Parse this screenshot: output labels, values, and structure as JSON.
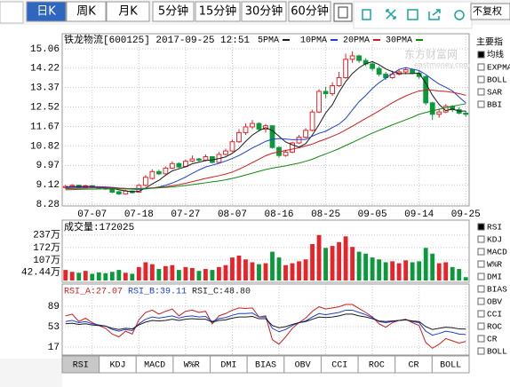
{
  "toolbar": {
    "tabs": [
      "日K",
      "周K",
      "月K",
      "5分钟",
      "15分钟",
      "30分钟",
      "60分钟"
    ],
    "active_tab": 0,
    "adjust": "不复权"
  },
  "side_panel": {
    "title": "主要指",
    "main_indicators": [
      "均线",
      "EXPMA",
      "BOLL",
      "SAR",
      "BBI"
    ],
    "main_checked": 0,
    "sub_indicators": [
      "RSI",
      "KDJ",
      "MACD",
      "W%R",
      "DMI",
      "BIAS",
      "OBV",
      "CCI",
      "ROC",
      "CR",
      "BOLL"
    ],
    "sub_checked": 0
  },
  "bottom_tabs": {
    "tabs": [
      "RSI",
      "KDJ",
      "MACD",
      "W%R",
      "DMI",
      "BIAS",
      "OBV",
      "CCI",
      "ROC",
      "CR",
      "BOLL"
    ],
    "active_tab": 0
  },
  "chart_data": [
    {
      "type": "candlestick",
      "title": "铁龙物流[600125] 2017-09-25 12:51",
      "watermark": "东方财富网",
      "watermark_sub": "eastmoney.com",
      "categories": [
        null,
        null,
        null,
        null,
        "07-07",
        null,
        null,
        null,
        null,
        null,
        null,
        "07-18",
        null,
        null,
        null,
        null,
        null,
        null,
        "07-27",
        null,
        null,
        null,
        null,
        null,
        null,
        "08-07",
        null,
        null,
        null,
        null,
        null,
        null,
        "08-16",
        null,
        null,
        null,
        null,
        null,
        null,
        "08-25",
        null,
        null,
        null,
        null,
        null,
        null,
        "09-05",
        null,
        null,
        null,
        null,
        null,
        null,
        "09-14",
        null,
        null,
        null,
        null,
        null,
        null,
        "09-25"
      ],
      "open": [
        9.0,
        9.05,
        9.1,
        9.0,
        9.08,
        9.02,
        8.98,
        8.95,
        8.82,
        8.72,
        8.85,
        8.8,
        9.1,
        9.4,
        9.7,
        9.6,
        9.85,
        10.05,
        9.92,
        10.15,
        10.25,
        10.2,
        10.35,
        10.1,
        10.45,
        10.6,
        11.0,
        11.4,
        11.65,
        11.8,
        11.55,
        11.7,
        10.75,
        10.4,
        10.55,
        10.95,
        11.2,
        11.5,
        12.3,
        13.2,
        13.1,
        13.45,
        13.8,
        14.6,
        14.75,
        14.55,
        14.4,
        14.2,
        13.95,
        13.8,
        13.95,
        14.05,
        14.15,
        14.0,
        13.85,
        12.7,
        12.2,
        12.3,
        12.55,
        12.4,
        12.25
      ],
      "high": [
        9.12,
        9.15,
        9.12,
        9.12,
        9.1,
        9.05,
        9.02,
        8.98,
        8.86,
        8.9,
        8.88,
        9.15,
        9.55,
        9.8,
        9.78,
        9.92,
        10.15,
        10.1,
        10.22,
        10.4,
        10.3,
        10.45,
        10.38,
        10.55,
        10.7,
        11.1,
        11.55,
        11.8,
        11.95,
        11.85,
        11.78,
        11.72,
        10.8,
        10.65,
        11.0,
        11.3,
        11.6,
        12.4,
        13.3,
        13.4,
        13.6,
        14.05,
        14.85,
        14.95,
        14.8,
        14.65,
        14.5,
        14.3,
        14.05,
        14.1,
        14.15,
        14.25,
        14.2,
        14.1,
        13.9,
        12.75,
        12.45,
        12.65,
        12.6,
        12.5,
        12.35
      ],
      "low": [
        8.95,
        9.0,
        8.96,
        8.98,
        8.98,
        8.92,
        8.9,
        8.76,
        8.68,
        8.7,
        8.74,
        8.78,
        9.05,
        9.35,
        9.55,
        9.58,
        9.8,
        9.85,
        9.88,
        10.1,
        10.12,
        10.15,
        10.05,
        10.08,
        10.4,
        10.55,
        10.95,
        11.3,
        11.55,
        11.45,
        11.4,
        10.7,
        10.3,
        10.35,
        10.5,
        10.9,
        11.15,
        11.45,
        12.25,
        12.9,
        13.0,
        13.4,
        13.75,
        14.45,
        14.45,
        14.3,
        14.1,
        13.85,
        13.7,
        13.75,
        13.9,
        13.95,
        13.95,
        13.75,
        12.6,
        11.95,
        12.05,
        12.25,
        12.3,
        12.2,
        12.1
      ],
      "close": [
        9.05,
        9.1,
        9.0,
        9.08,
        9.02,
        8.98,
        8.95,
        8.8,
        8.72,
        8.85,
        8.78,
        9.1,
        9.45,
        9.7,
        9.6,
        9.85,
        10.05,
        9.9,
        10.15,
        10.25,
        10.2,
        10.35,
        10.1,
        10.45,
        10.6,
        11.0,
        11.4,
        11.65,
        11.8,
        11.55,
        11.7,
        10.75,
        10.4,
        10.55,
        10.95,
        11.2,
        11.5,
        12.3,
        13.2,
        13.1,
        13.45,
        13.8,
        14.6,
        14.75,
        14.55,
        14.4,
        14.2,
        13.95,
        13.8,
        13.95,
        14.05,
        14.15,
        14.0,
        13.85,
        12.7,
        12.2,
        12.3,
        12.55,
        12.4,
        12.25,
        12.2
      ],
      "up_color": "#e8232a",
      "down_color": "#0a9a3c",
      "series": [
        {
          "name": "5PMA",
          "color": "#1a1a1a",
          "values": [
            9.02,
            9.04,
            9.05,
            9.05,
            9.05,
            9.03,
            9.0,
            8.97,
            8.9,
            8.86,
            8.82,
            8.84,
            8.98,
            9.16,
            9.32,
            9.54,
            9.73,
            9.82,
            9.91,
            10.04,
            10.11,
            10.18,
            10.21,
            10.27,
            10.34,
            10.5,
            10.71,
            11.02,
            11.29,
            11.48,
            11.62,
            11.49,
            11.24,
            10.99,
            10.87,
            10.77,
            10.92,
            11.3,
            11.75,
            12.26,
            12.62,
            13.17,
            13.63,
            13.98,
            14.23,
            14.41,
            14.5,
            14.37,
            14.18,
            14.06,
            13.98,
            13.98,
            13.98,
            14.0,
            13.56,
            13.03,
            12.63,
            12.36,
            12.43,
            12.34,
            12.34
          ]
        },
        {
          "name": "10PMA",
          "color": "#1c3fd0",
          "values": [
            9.0,
            9.01,
            9.02,
            9.03,
            9.04,
            9.04,
            9.03,
            9.01,
            8.98,
            8.96,
            8.93,
            8.92,
            8.94,
            8.98,
            9.03,
            9.1,
            9.2,
            9.32,
            9.46,
            9.62,
            9.77,
            9.9,
            9.98,
            10.06,
            10.16,
            10.27,
            10.4,
            10.56,
            10.73,
            10.87,
            11.02,
            11.11,
            11.14,
            11.12,
            11.09,
            11.1,
            11.1,
            11.25,
            11.37,
            11.46,
            11.62,
            11.77,
            12.02,
            12.39,
            12.75,
            13.02,
            13.33,
            13.58,
            13.78,
            13.97,
            14.16,
            14.24,
            14.17,
            14.11,
            13.94,
            13.72,
            13.52,
            13.38,
            13.22,
            12.95,
            12.7
          ]
        },
        {
          "name": "20PMA",
          "color": "#d01c1c",
          "values": [
            8.95,
            8.96,
            8.97,
            8.98,
            8.99,
            8.99,
            8.99,
            8.98,
            8.97,
            8.96,
            8.96,
            8.96,
            8.97,
            8.99,
            9.01,
            9.04,
            9.08,
            9.13,
            9.19,
            9.26,
            9.33,
            9.4,
            9.46,
            9.52,
            9.59,
            9.68,
            9.8,
            9.94,
            10.09,
            10.24,
            10.39,
            10.5,
            10.56,
            10.62,
            10.68,
            10.74,
            10.82,
            10.9,
            11.02,
            11.12,
            11.24,
            11.36,
            11.52,
            11.68,
            11.85,
            12.02,
            12.18,
            12.35,
            12.53,
            12.7,
            12.86,
            13.0,
            13.12,
            13.22,
            13.25,
            13.25,
            13.22,
            13.2,
            13.16,
            13.1,
            13.03
          ]
        },
        {
          "name": "30PMA",
          "color": "#108a10",
          "values": [
            8.9,
            8.91,
            8.92,
            8.93,
            8.93,
            8.94,
            8.94,
            8.94,
            8.94,
            8.94,
            8.94,
            8.95,
            8.96,
            8.97,
            8.99,
            9.01,
            9.03,
            9.06,
            9.09,
            9.13,
            9.17,
            9.21,
            9.25,
            9.29,
            9.34,
            9.4,
            9.47,
            9.55,
            9.63,
            9.71,
            9.79,
            9.85,
            9.9,
            9.95,
            10.01,
            10.07,
            10.15,
            10.24,
            10.36,
            10.47,
            10.58,
            10.7,
            10.84,
            10.97,
            11.11,
            11.25,
            11.38,
            11.5,
            11.62,
            11.74,
            11.85,
            11.96,
            12.07,
            12.2,
            12.28,
            12.35,
            12.42,
            12.49,
            12.55,
            12.61,
            12.66
          ]
        }
      ],
      "ylim": [
        8.2,
        15.33
      ],
      "yticks": [
        15.06,
        14.22,
        13.37,
        12.52,
        11.67,
        10.82,
        9.97,
        9.12,
        8.28
      ],
      "grid": true
    },
    {
      "type": "volume",
      "title": "成交量:172025",
      "values": [
        55,
        45,
        40,
        50,
        35,
        42,
        38,
        45,
        55,
        40,
        35,
        70,
        95,
        85,
        60,
        75,
        80,
        55,
        70,
        65,
        50,
        60,
        55,
        70,
        80,
        120,
        130,
        110,
        95,
        85,
        90,
        150,
        120,
        80,
        90,
        100,
        110,
        190,
        237,
        170,
        180,
        200,
        230,
        175,
        150,
        140,
        120,
        110,
        95,
        100,
        90,
        105,
        95,
        100,
        170,
        140,
        90,
        95,
        70,
        60,
        17.2
      ],
      "ylim": [
        0,
        250
      ],
      "yticks": [
        {
          "value": 237,
          "label": "237万"
        },
        {
          "value": 172,
          "label": "172万"
        },
        {
          "value": 107,
          "label": "107万"
        },
        {
          "value": 42.44,
          "label": "42.44万"
        }
      ],
      "grid": true
    },
    {
      "type": "line",
      "series": [
        {
          "name": "RSI_A:27.07",
          "color": "#d01c1c",
          "values": [
            72,
            75,
            62,
            68,
            60,
            55,
            50,
            40,
            35,
            45,
            40,
            65,
            78,
            82,
            75,
            80,
            84,
            72,
            80,
            82,
            78,
            80,
            58,
            72,
            76,
            82,
            86,
            85,
            86,
            70,
            72,
            30,
            22,
            35,
            50,
            60,
            68,
            80,
            88,
            84,
            86,
            88,
            92,
            92,
            85,
            78,
            70,
            58,
            52,
            60,
            64,
            66,
            60,
            55,
            25,
            15,
            22,
            32,
            28,
            24,
            27.07
          ]
        },
        {
          "name": "RSI_B:39.11",
          "color": "#1c3fd0",
          "values": [
            62,
            64,
            60,
            62,
            58,
            56,
            54,
            48,
            45,
            48,
            46,
            58,
            66,
            70,
            68,
            70,
            72,
            68,
            71,
            72,
            70,
            71,
            62,
            67,
            69,
            73,
            76,
            76,
            77,
            70,
            70,
            50,
            44,
            48,
            55,
            60,
            63,
            70,
            76,
            74,
            76,
            78,
            82,
            82,
            78,
            74,
            69,
            62,
            60,
            62,
            64,
            65,
            62,
            60,
            45,
            38,
            41,
            45,
            43,
            40,
            39.11
          ]
        },
        {
          "name": "RSI_C:48.80",
          "color": "#1a1a1a",
          "values": [
            58,
            59,
            57,
            58,
            56,
            55,
            54,
            50,
            48,
            50,
            49,
            56,
            61,
            64,
            63,
            64,
            66,
            64,
            66,
            67,
            66,
            66,
            61,
            64,
            65,
            68,
            70,
            70,
            71,
            67,
            67,
            55,
            51,
            53,
            57,
            60,
            62,
            66,
            70,
            69,
            70,
            72,
            75,
            75,
            72,
            70,
            67,
            63,
            62,
            63,
            64,
            65,
            63,
            62,
            53,
            48,
            50,
            52,
            51,
            49,
            48.8
          ]
        }
      ],
      "ylim": [
        3,
        103
      ],
      "yticks": [
        89,
        53,
        17
      ],
      "grid": true
    }
  ]
}
